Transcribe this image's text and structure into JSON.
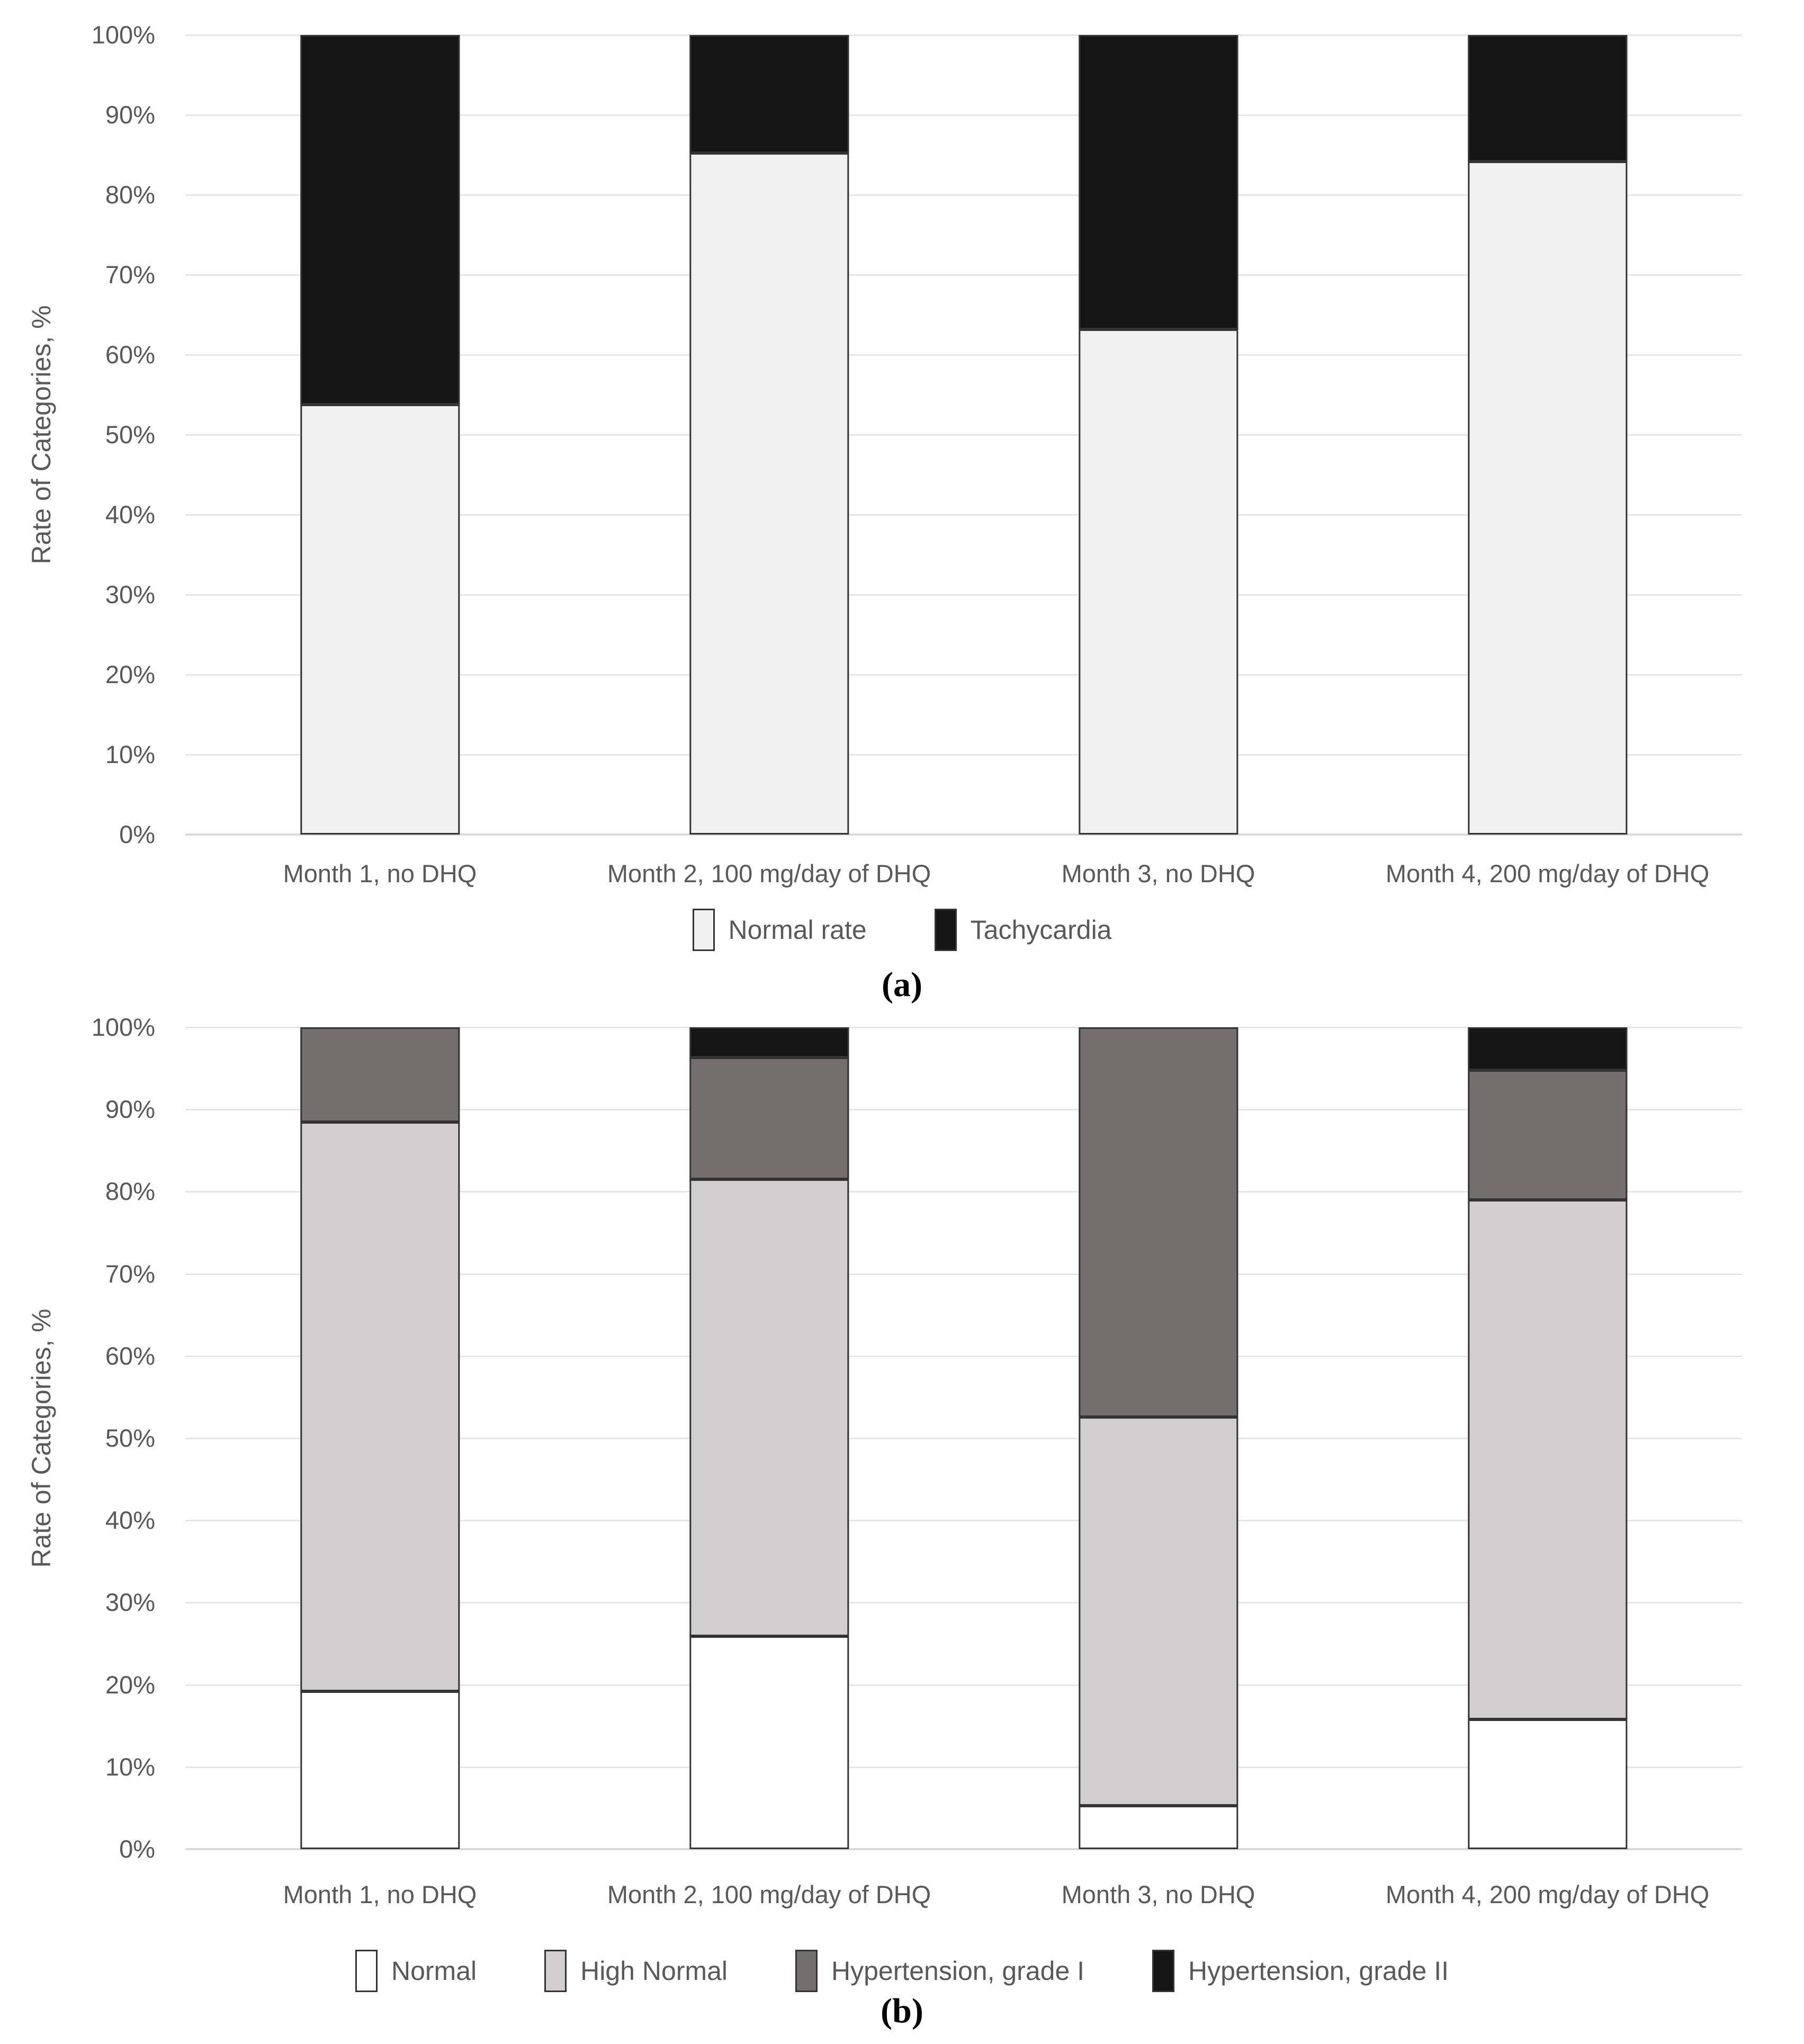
{
  "colors": {
    "background": "#ffffff",
    "gridline": "#e6e6e6",
    "axis_line": "#d9d9d9",
    "text": "#595959",
    "segment_border": "#333333",
    "panel_label_text": "#000000"
  },
  "chart_data": [
    {
      "type": "bar",
      "stacked": true,
      "panel_label": "(a)",
      "title": "",
      "xlabel": "",
      "ylabel": "Rate of Categories, %",
      "ylim": [
        0,
        100
      ],
      "grid": "horizontal",
      "legend_position": "bottom",
      "yticks": [
        "0%",
        "10%",
        "20%",
        "30%",
        "40%",
        "50%",
        "60%",
        "70%",
        "80%",
        "90%",
        "100%"
      ],
      "categories": [
        "Month 1, no DHQ",
        "Month 2, 100 mg/day of DHQ",
        "Month 3, no DHQ",
        "Month 4, 200 mg/day of DHQ"
      ],
      "series": [
        {
          "name": "Normal rate",
          "color": "#f1f1f1",
          "values": [
            53.8,
            85.2,
            63.2,
            84.2
          ]
        },
        {
          "name": "Tachycardia",
          "color": "#141414",
          "values": [
            46.2,
            14.8,
            36.8,
            15.8
          ]
        }
      ]
    },
    {
      "type": "bar",
      "stacked": true,
      "panel_label": "(b)",
      "title": "",
      "xlabel": "",
      "ylabel": "Rate of Categories, %",
      "ylim": [
        0,
        100
      ],
      "grid": "horizontal",
      "legend_position": "bottom",
      "yticks": [
        "0%",
        "10%",
        "20%",
        "30%",
        "40%",
        "50%",
        "60%",
        "70%",
        "80%",
        "90%",
        "100%"
      ],
      "categories": [
        "Month 1, no DHQ",
        "Month 2, 100 mg/day of DHQ",
        "Month 3, no DHQ",
        "Month 4, 200 mg/day of DHQ"
      ],
      "series": [
        {
          "name": "Normal",
          "color": "#ffffff",
          "values": [
            19.2,
            25.9,
            5.3,
            15.8
          ]
        },
        {
          "name": "High Normal",
          "color": "#d0cece",
          "values": [
            69.3,
            55.6,
            47.3,
            63.2
          ]
        },
        {
          "name": "Hypertension, grade I",
          "color": "#736f6f",
          "values": [
            11.5,
            14.8,
            47.4,
            15.8
          ]
        },
        {
          "name": "Hypertension, grade II",
          "color": "#141414",
          "values": [
            0,
            3.7,
            0,
            5.2
          ]
        }
      ]
    }
  ]
}
